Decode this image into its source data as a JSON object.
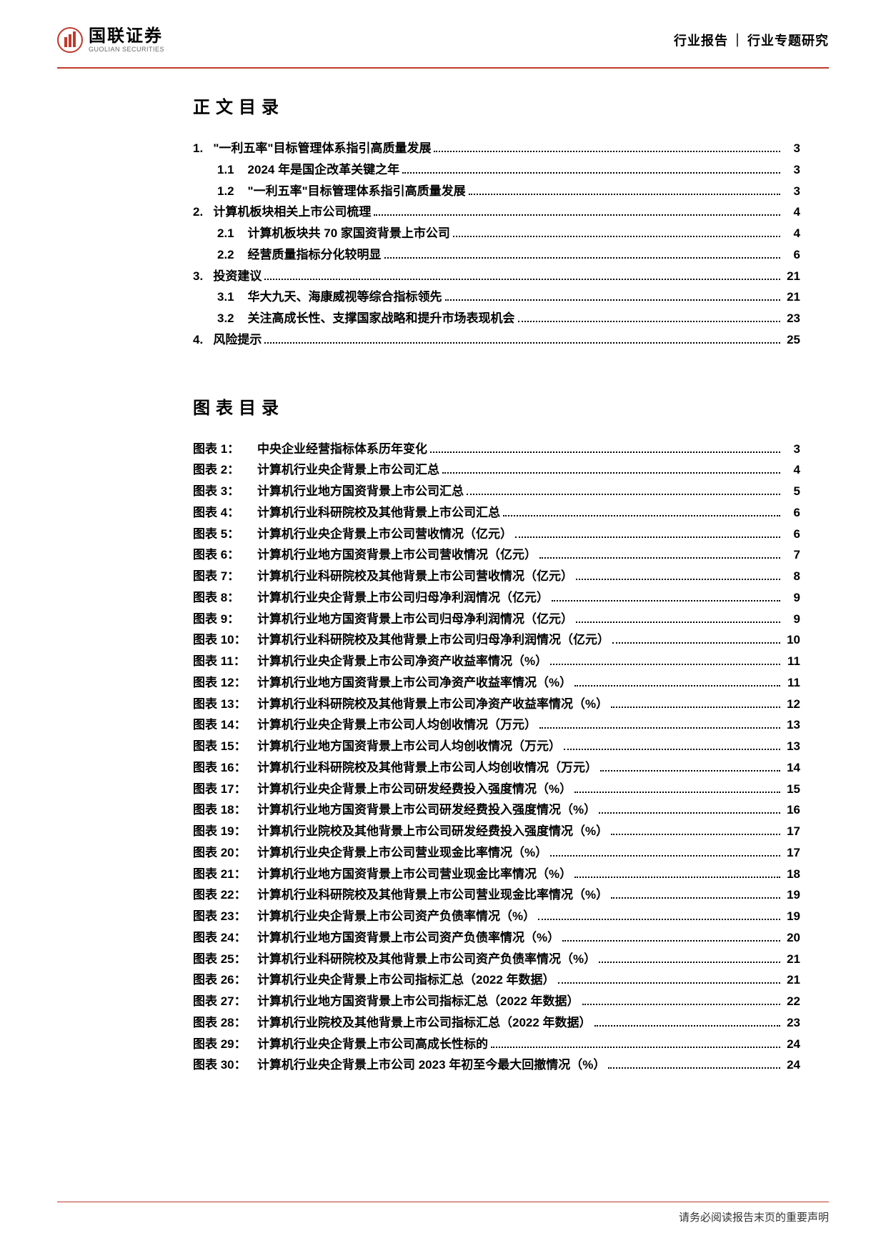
{
  "header": {
    "logo_cn": "国联证券",
    "logo_en": "GUOLIAN SECURITIES",
    "right_a": "行业报告",
    "sep": "｜",
    "right_b": "行业专题研究"
  },
  "colors": {
    "accent": "#c0392b",
    "text": "#000000"
  },
  "toc_title": "正文目录",
  "toc": [
    {
      "num": "1.",
      "text": "\"一利五率\"目标管理体系指引高质量发展",
      "page": "3",
      "indent": 0
    },
    {
      "num": "1.1",
      "text": "2024 年是国企改革关键之年",
      "page": "3",
      "indent": 1
    },
    {
      "num": "1.2",
      "text": "\"一利五率\"目标管理体系指引高质量发展",
      "page": "3",
      "indent": 1
    },
    {
      "num": "2.",
      "text": "计算机板块相关上市公司梳理",
      "page": "4",
      "indent": 0
    },
    {
      "num": "2.1",
      "text": "计算机板块共 70 家国资背景上市公司",
      "page": "4",
      "indent": 1
    },
    {
      "num": "2.2",
      "text": "经营质量指标分化较明显",
      "page": "6",
      "indent": 1
    },
    {
      "num": "3.",
      "text": "投资建议",
      "page": "21",
      "indent": 0
    },
    {
      "num": "3.1",
      "text": "华大九天、海康威视等综合指标领先",
      "page": "21",
      "indent": 1
    },
    {
      "num": "3.2",
      "text": "关注高成长性、支撑国家战略和提升市场表现机会",
      "page": "23",
      "indent": 1
    },
    {
      "num": "4.",
      "text": "风险提示",
      "page": "25",
      "indent": 0
    }
  ],
  "fig_title": "图表目录",
  "figures": [
    {
      "label": "图表 1：",
      "title": "中央企业经营指标体系历年变化",
      "page": "3"
    },
    {
      "label": "图表 2：",
      "title": "计算机行业央企背景上市公司汇总",
      "page": "4"
    },
    {
      "label": "图表 3：",
      "title": "计算机行业地方国资背景上市公司汇总",
      "page": "5"
    },
    {
      "label": "图表 4：",
      "title": "计算机行业科研院校及其他背景上市公司汇总",
      "page": "6"
    },
    {
      "label": "图表 5：",
      "title": "计算机行业央企背景上市公司营收情况（亿元）",
      "page": "6"
    },
    {
      "label": "图表 6：",
      "title": "计算机行业地方国资背景上市公司营收情况（亿元）",
      "page": "7"
    },
    {
      "label": "图表 7：",
      "title": "计算机行业科研院校及其他背景上市公司营收情况（亿元）",
      "page": "8"
    },
    {
      "label": "图表 8：",
      "title": "计算机行业央企背景上市公司归母净利润情况（亿元）",
      "page": "9"
    },
    {
      "label": "图表 9：",
      "title": "计算机行业地方国资背景上市公司归母净利润情况（亿元）",
      "page": "9"
    },
    {
      "label": "图表 10：",
      "title": "计算机行业科研院校及其他背景上市公司归母净利润情况（亿元）",
      "page": "10"
    },
    {
      "label": "图表 11：",
      "title": "计算机行业央企背景上市公司净资产收益率情况（%）",
      "page": "11"
    },
    {
      "label": "图表 12：",
      "title": "计算机行业地方国资背景上市公司净资产收益率情况（%）",
      "page": "11"
    },
    {
      "label": "图表 13：",
      "title": "计算机行业科研院校及其他背景上市公司净资产收益率情况（%）",
      "page": "12"
    },
    {
      "label": "图表 14：",
      "title": "计算机行业央企背景上市公司人均创收情况（万元）",
      "page": "13"
    },
    {
      "label": "图表 15：",
      "title": "计算机行业地方国资背景上市公司人均创收情况（万元）",
      "page": "13"
    },
    {
      "label": "图表 16：",
      "title": "计算机行业科研院校及其他背景上市公司人均创收情况（万元）",
      "page": "14"
    },
    {
      "label": "图表 17：",
      "title": "计算机行业央企背景上市公司研发经费投入强度情况（%）",
      "page": "15"
    },
    {
      "label": "图表 18：",
      "title": "计算机行业地方国资背景上市公司研发经费投入强度情况（%）",
      "page": "16"
    },
    {
      "label": "图表 19：",
      "title": "计算机行业院校及其他背景上市公司研发经费投入强度情况（%）",
      "page": "17"
    },
    {
      "label": "图表 20：",
      "title": "计算机行业央企背景上市公司营业现金比率情况（%）",
      "page": "17"
    },
    {
      "label": "图表 21：",
      "title": "计算机行业地方国资背景上市公司营业现金比率情况（%）",
      "page": "18"
    },
    {
      "label": "图表 22：",
      "title": "计算机行业科研院校及其他背景上市公司营业现金比率情况（%）",
      "page": "19"
    },
    {
      "label": "图表 23：",
      "title": "计算机行业央企背景上市公司资产负债率情况（%）",
      "page": "19"
    },
    {
      "label": "图表 24：",
      "title": "计算机行业地方国资背景上市公司资产负债率情况（%）",
      "page": "20"
    },
    {
      "label": "图表 25：",
      "title": "计算机行业科研院校及其他背景上市公司资产负债率情况（%）",
      "page": "21"
    },
    {
      "label": "图表 26：",
      "title": "计算机行业央企背景上市公司指标汇总（2022 年数据）",
      "page": "21"
    },
    {
      "label": "图表 27：",
      "title": "计算机行业地方国资背景上市公司指标汇总（2022 年数据）",
      "page": "22"
    },
    {
      "label": "图表 28：",
      "title": "计算机行业院校及其他背景上市公司指标汇总（2022 年数据）",
      "page": "23"
    },
    {
      "label": "图表 29：",
      "title": "计算机行业央企背景上市公司高成长性标的",
      "page": "24"
    },
    {
      "label": "图表 30：",
      "title": "计算机行业央企背景上市公司 2023 年初至今最大回撤情况（%）",
      "page": "24"
    }
  ],
  "footer": "请务必阅读报告末页的重要声明"
}
